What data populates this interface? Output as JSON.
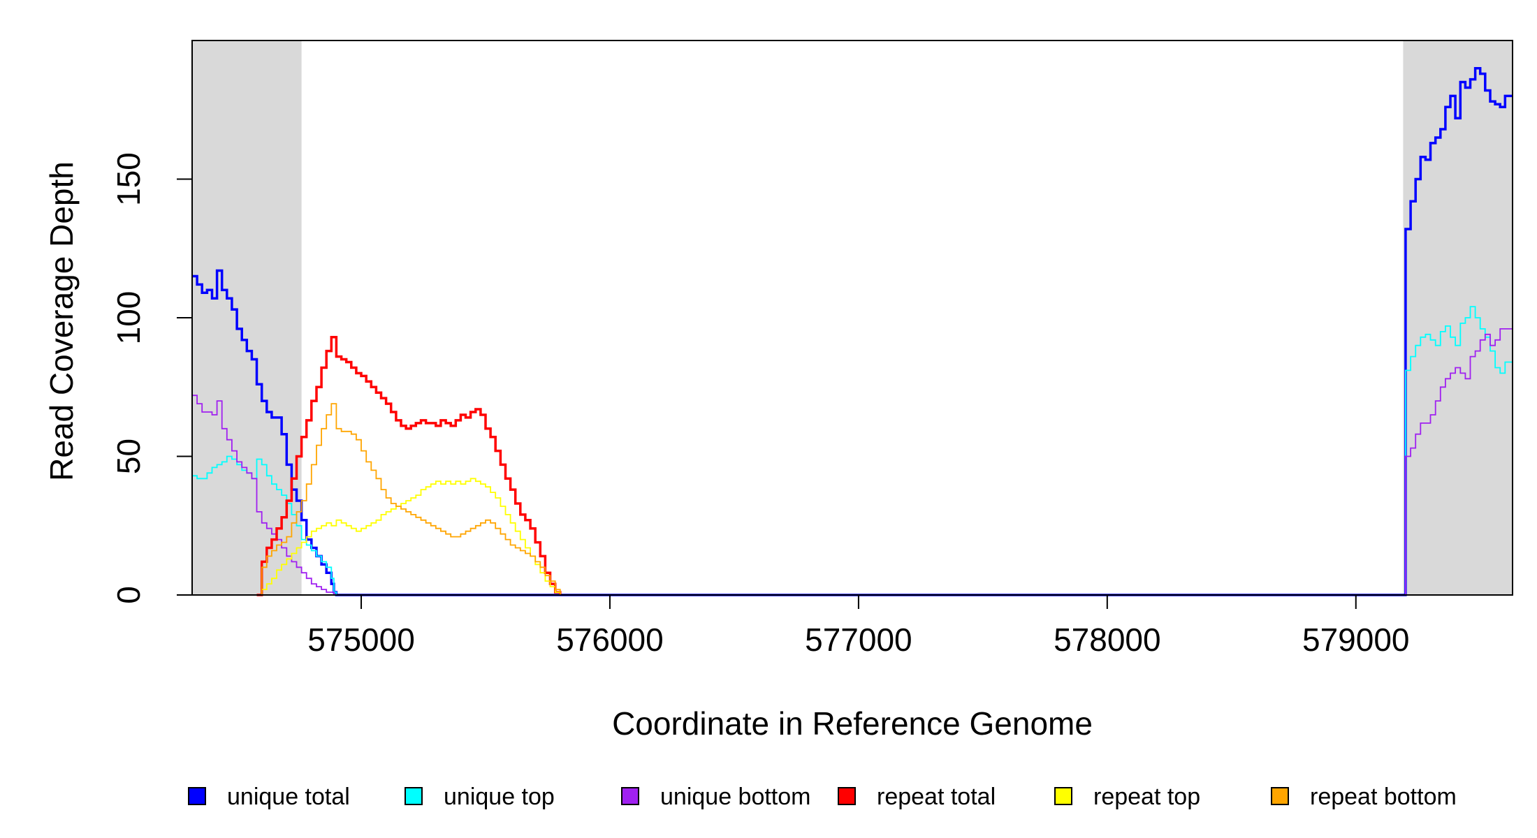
{
  "chart_data": {
    "type": "line",
    "xlabel": "Coordinate in Reference Genome",
    "ylabel": "Read Coverage Depth",
    "xlim": [
      574320,
      579630
    ],
    "ylim": [
      0,
      200
    ],
    "x_ticks": [
      575000,
      576000,
      577000,
      578000,
      579000
    ],
    "x_tick_labels": [
      "575000",
      "576000",
      "577000",
      "578000",
      "579000"
    ],
    "y_ticks": [
      0,
      50,
      100,
      150
    ],
    "y_tick_labels": [
      "0",
      "50",
      "100",
      "150"
    ],
    "grid": false,
    "legend_position": "bottom",
    "shaded_regions": [
      {
        "x": [
          574320,
          574760
        ],
        "color": "#d9d9d9"
      },
      {
        "x": [
          579190,
          579630
        ],
        "color": "#d9d9d9"
      }
    ],
    "series": [
      {
        "name": "unique total",
        "color": "#0000ff",
        "x": [
          574320,
          574340,
          574360,
          574380,
          574400,
          574420,
          574440,
          574460,
          574480,
          574500,
          574520,
          574540,
          574560,
          574580,
          574600,
          574620,
          574640,
          574660,
          574680,
          574700,
          574720,
          574740,
          574760,
          574780,
          574800,
          574820,
          574840,
          574860,
          574880,
          574890,
          574900,
          579190,
          579200,
          579220,
          579240,
          579260,
          579280,
          579300,
          579320,
          579340,
          579360,
          579380,
          579400,
          579420,
          579440,
          579460,
          579480,
          579500,
          579520,
          579540,
          579560,
          579580,
          579600,
          579630
        ],
        "y": [
          115,
          112,
          109,
          110,
          107,
          117,
          110,
          107,
          103,
          96,
          92,
          88,
          85,
          76,
          70,
          66,
          64,
          64,
          58,
          47,
          38,
          34,
          27,
          20,
          17,
          14,
          11,
          8,
          4,
          1,
          0,
          0,
          132,
          142,
          150,
          158,
          157,
          163,
          165,
          168,
          176,
          180,
          172,
          185,
          183,
          186,
          190,
          188,
          182,
          178,
          177,
          176,
          180,
          180
        ]
      },
      {
        "name": "unique top",
        "color": "#00ffff",
        "x": [
          574320,
          574340,
          574360,
          574380,
          574400,
          574420,
          574440,
          574460,
          574480,
          574500,
          574520,
          574540,
          574560,
          574580,
          574600,
          574620,
          574640,
          574660,
          574680,
          574700,
          574720,
          574740,
          574760,
          574780,
          574800,
          574820,
          574840,
          574860,
          574880,
          574890,
          574900,
          579190,
          579200,
          579220,
          579240,
          579260,
          579280,
          579300,
          579320,
          579340,
          579360,
          579380,
          579400,
          579420,
          579440,
          579460,
          579480,
          579500,
          579520,
          579540,
          579560,
          579580,
          579600,
          579630
        ],
        "y": [
          43,
          42,
          42,
          44,
          46,
          47,
          48,
          50,
          49,
          47,
          45,
          44,
          42,
          49,
          47,
          43,
          40,
          38,
          36,
          33,
          29,
          25,
          20,
          18,
          16,
          14,
          12,
          10,
          6,
          1,
          0,
          0,
          81,
          86,
          90,
          93,
          94,
          92,
          90,
          95,
          97,
          93,
          90,
          98,
          100,
          104,
          100,
          96,
          93,
          88,
          82,
          80,
          84,
          86
        ]
      },
      {
        "name": "unique bottom",
        "color": "#a020f0",
        "x": [
          574320,
          574340,
          574360,
          574380,
          574400,
          574420,
          574440,
          574460,
          574480,
          574500,
          574520,
          574540,
          574560,
          574580,
          574600,
          574620,
          574640,
          574660,
          574680,
          574700,
          574720,
          574740,
          574760,
          574780,
          574800,
          574820,
          574840,
          574860,
          574880,
          574890,
          574900,
          579190,
          579200,
          579220,
          579240,
          579260,
          579280,
          579300,
          579320,
          579340,
          579360,
          579380,
          579400,
          579420,
          579440,
          579460,
          579480,
          579500,
          579520,
          579540,
          579560,
          579580,
          579600,
          579630
        ],
        "y": [
          72,
          69,
          66,
          66,
          65,
          70,
          60,
          56,
          52,
          48,
          46,
          44,
          42,
          30,
          26,
          24,
          22,
          20,
          17,
          14,
          12,
          10,
          8,
          6,
          4,
          3,
          2,
          1,
          1,
          0,
          0,
          0,
          50,
          53,
          58,
          62,
          62,
          65,
          70,
          75,
          78,
          80,
          82,
          80,
          78,
          86,
          88,
          92,
          94,
          90,
          92,
          96,
          96,
          90
        ]
      },
      {
        "name": "repeat total",
        "color": "#ff0000",
        "x": [
          574580,
          574600,
          574620,
          574640,
          574660,
          574680,
          574700,
          574720,
          574740,
          574760,
          574780,
          574800,
          574820,
          574840,
          574860,
          574880,
          574900,
          574920,
          574940,
          574960,
          574980,
          575000,
          575020,
          575040,
          575060,
          575080,
          575100,
          575120,
          575140,
          575160,
          575180,
          575200,
          575220,
          575240,
          575260,
          575280,
          575300,
          575320,
          575340,
          575360,
          575380,
          575400,
          575420,
          575440,
          575460,
          575480,
          575500,
          575520,
          575540,
          575560,
          575580,
          575600,
          575620,
          575640,
          575660,
          575680,
          575700,
          575720,
          575740,
          575760,
          575780,
          575800
        ],
        "y": [
          0,
          12,
          17,
          20,
          24,
          28,
          34,
          42,
          50,
          57,
          63,
          70,
          75,
          82,
          88,
          93,
          86,
          85,
          84,
          82,
          80,
          79,
          77,
          75,
          73,
          71,
          69,
          66,
          63,
          61,
          60,
          61,
          62,
          63,
          62,
          62,
          61,
          63,
          62,
          61,
          63,
          65,
          64,
          66,
          67,
          65,
          60,
          57,
          52,
          47,
          42,
          38,
          33,
          29,
          27,
          24,
          19,
          14,
          8,
          4,
          1,
          0
        ]
      },
      {
        "name": "repeat top",
        "color": "#ffff00",
        "x": [
          574580,
          574600,
          574620,
          574640,
          574660,
          574680,
          574700,
          574720,
          574740,
          574760,
          574780,
          574800,
          574820,
          574840,
          574860,
          574880,
          574900,
          574920,
          574940,
          574960,
          574980,
          575000,
          575020,
          575040,
          575060,
          575080,
          575100,
          575120,
          575140,
          575160,
          575180,
          575200,
          575220,
          575240,
          575260,
          575280,
          575300,
          575320,
          575340,
          575360,
          575380,
          575400,
          575420,
          575440,
          575460,
          575480,
          575500,
          575520,
          575540,
          575560,
          575580,
          575600,
          575620,
          575640,
          575660,
          575680,
          575700,
          575720,
          575740,
          575760,
          575780,
          575800
        ],
        "y": [
          0,
          2,
          4,
          6,
          9,
          11,
          13,
          15,
          17,
          19,
          21,
          23,
          24,
          25,
          26,
          25,
          27,
          26,
          25,
          24,
          23,
          24,
          25,
          26,
          27,
          29,
          30,
          31,
          32,
          33,
          34,
          35,
          36,
          38,
          39,
          40,
          41,
          40,
          41,
          40,
          41,
          40,
          41,
          42,
          41,
          40,
          39,
          37,
          35,
          32,
          29,
          26,
          23,
          20,
          17,
          14,
          11,
          8,
          5,
          3,
          1,
          0
        ]
      },
      {
        "name": "repeat bottom",
        "color": "#ffa500",
        "x": [
          574580,
          574600,
          574620,
          574640,
          574660,
          574680,
          574700,
          574720,
          574740,
          574760,
          574780,
          574800,
          574820,
          574840,
          574860,
          574880,
          574900,
          574920,
          574940,
          574960,
          574980,
          575000,
          575020,
          575040,
          575060,
          575080,
          575100,
          575120,
          575140,
          575160,
          575180,
          575200,
          575220,
          575240,
          575260,
          575280,
          575300,
          575320,
          575340,
          575360,
          575380,
          575400,
          575420,
          575440,
          575460,
          575480,
          575500,
          575520,
          575540,
          575560,
          575580,
          575600,
          575620,
          575640,
          575660,
          575680,
          575700,
          575720,
          575740,
          575760,
          575780,
          575800
        ],
        "y": [
          0,
          10,
          14,
          16,
          18,
          19,
          21,
          26,
          30,
          34,
          40,
          47,
          54,
          60,
          65,
          69,
          60,
          59,
          59,
          58,
          56,
          52,
          48,
          45,
          42,
          38,
          35,
          33,
          32,
          31,
          30,
          29,
          28,
          27,
          26,
          25,
          24,
          23,
          22,
          21,
          21,
          22,
          23,
          24,
          25,
          26,
          27,
          26,
          24,
          22,
          20,
          18,
          17,
          16,
          15,
          14,
          12,
          10,
          7,
          5,
          2,
          0
        ]
      }
    ]
  }
}
